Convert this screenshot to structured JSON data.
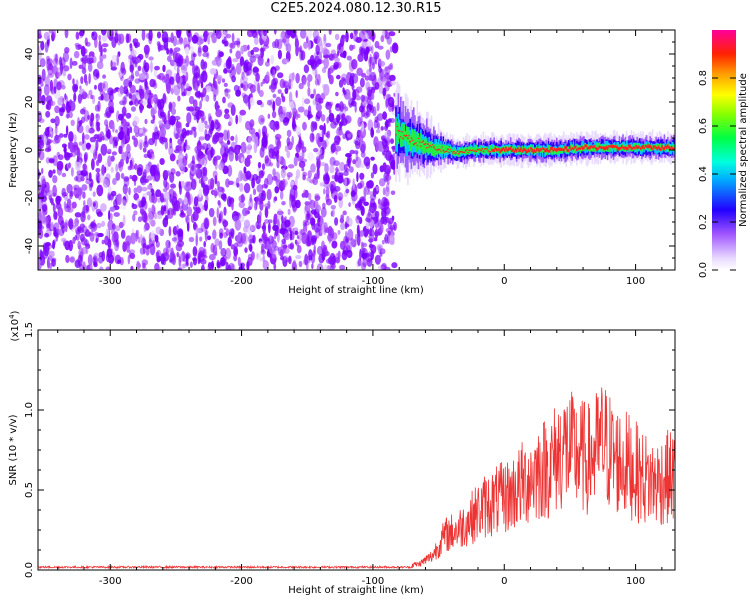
{
  "title": "C2E5.2024.080.12.30.R15",
  "chart_data": [
    {
      "type": "heatmap",
      "xlabel": "Height of straight line (km)",
      "ylabel": "Frequency (Hz)",
      "xlim": [
        -355,
        130
      ],
      "ylim": [
        -50,
        50
      ],
      "xticks": [
        -300,
        -200,
        -100,
        0,
        100
      ],
      "xtick_labels": [
        "-300",
        "-200",
        "-100",
        "0",
        "100"
      ],
      "yticks": [
        -40,
        -20,
        0,
        20,
        40
      ],
      "ytick_labels": [
        "-40",
        "-20",
        "0",
        "20",
        "40"
      ],
      "noise_region_x": [
        -355,
        -83
      ],
      "signal_ridge": {
        "x": [
          -83,
          -75,
          -65,
          -55,
          -45,
          -35,
          -25,
          -15,
          0,
          20,
          40,
          60,
          80,
          100,
          120,
          130
        ],
        "freq": [
          8,
          5,
          3,
          1,
          0,
          -1,
          0,
          0,
          0,
          0,
          0,
          1,
          1,
          1,
          1,
          1
        ]
      },
      "colorbar": {
        "label": "Normalized spectral amplitude",
        "range": [
          0,
          1
        ],
        "ticks": [
          0.0,
          0.2,
          0.4,
          0.6,
          0.8
        ],
        "tick_labels": [
          "0.0",
          "0.2",
          "0.4",
          "0.6",
          "0.8"
        ]
      }
    },
    {
      "type": "line",
      "xlabel": "Height of straight line (km)",
      "ylabel": "SNR (10 * v/v)",
      "yscale_label": "(x10",
      "yscale_exp": "4",
      "xlim": [
        -355,
        130
      ],
      "ylim": [
        0,
        1.5
      ],
      "xticks": [
        -300,
        -200,
        -100,
        0,
        100
      ],
      "xtick_labels": [
        "-300",
        "-200",
        "-100",
        "0",
        "100"
      ],
      "yticks": [
        0.0,
        0.5,
        1.0,
        1.5
      ],
      "ytick_labels": [
        "0.0",
        "0.5",
        "1.0",
        "1.5"
      ],
      "series": [
        {
          "color": "#ee3333",
          "envelope_x": [
            -355,
            -100,
            -65,
            -55,
            -45,
            -35,
            -25,
            -15,
            -5,
            5,
            15,
            25,
            35,
            45,
            55,
            65,
            75,
            85,
            95,
            105,
            115,
            125,
            130
          ],
          "envelope_y": [
            0.02,
            0.02,
            0.05,
            0.12,
            0.3,
            0.35,
            0.45,
            0.55,
            0.6,
            0.65,
            0.75,
            0.85,
            0.9,
            1.05,
            1.0,
            0.95,
            1.1,
            0.95,
            0.9,
            0.8,
            0.75,
            0.8,
            0.8
          ]
        }
      ]
    }
  ]
}
